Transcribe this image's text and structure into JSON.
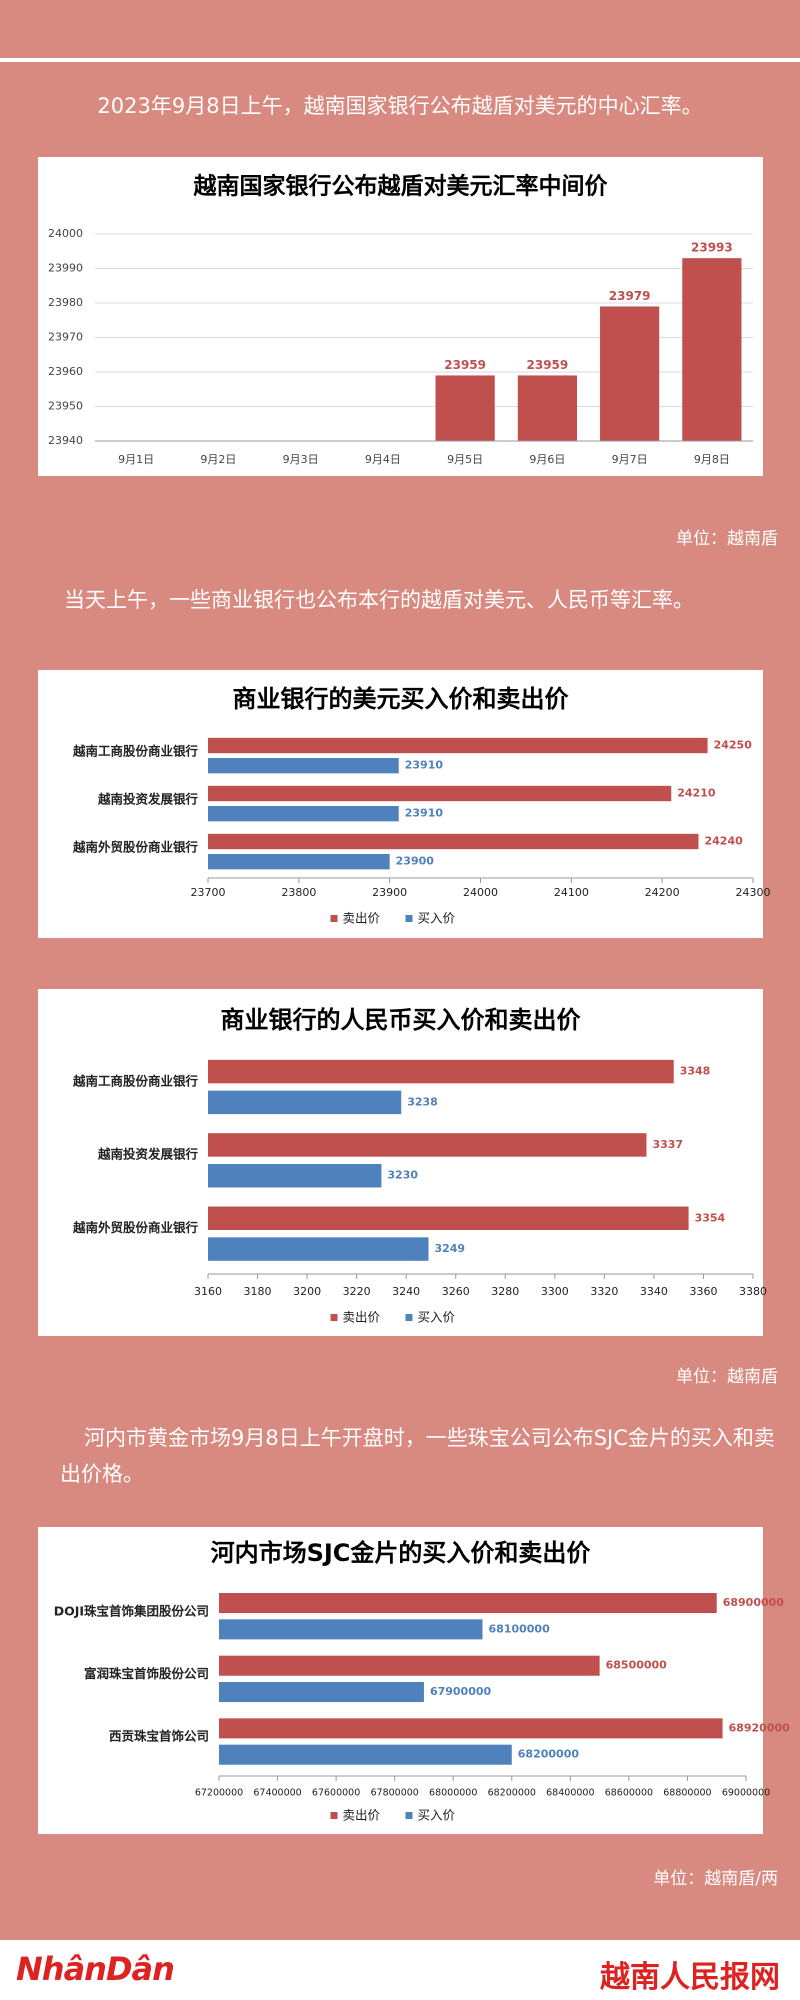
{
  "paragraphs": [
    "2023年9月8日上午，越南国家银行公布越盾对美元的中心汇率。",
    "当天上午，一些商业银行也公布本行的越盾对美元、人民币等汇率。",
    "河内市黄金市场9月8日上午开盘时，一些珠宝公司公布SJC金片的买入和卖出价格。"
  ],
  "notes": [
    "单位：越南盾",
    "单位：越南盾",
    "单位：越南盾/两"
  ],
  "footer": {
    "logo": "NhânDân",
    "site": "越南人民报网"
  },
  "chart_data": [
    {
      "type": "bar",
      "title": "越南国家银行公布越盾对美元汇率中间价",
      "categories": [
        "9月1日",
        "9月2日",
        "9月3日",
        "9月4日",
        "9月5日",
        "9月6日",
        "9月7日",
        "9月8日"
      ],
      "values": [
        null,
        null,
        null,
        null,
        23959,
        23959,
        23979,
        23993
      ],
      "color": "#c0504d",
      "ylim": [
        23940,
        24000
      ],
      "yticks": [
        23940,
        23950,
        23960,
        23970,
        23980,
        23990,
        24000
      ],
      "grid": true
    },
    {
      "type": "barh",
      "title": "商业银行的美元买入价和卖出价",
      "categories": [
        "越南工商股份商业银行",
        "越南投资发展银行",
        "越南外贸股份商业银行"
      ],
      "series": [
        {
          "name": "卖出价",
          "color": "#c0504d",
          "values": [
            24250,
            24210,
            24240
          ]
        },
        {
          "name": "买入价",
          "color": "#4f81bd",
          "values": [
            23910,
            23910,
            23900
          ]
        }
      ],
      "xlim": [
        23700,
        24300
      ],
      "xticks": [
        23700,
        23800,
        23900,
        24000,
        24100,
        24200,
        24300
      ],
      "legend": "bottom"
    },
    {
      "type": "barh",
      "title": "商业银行的人民币买入价和卖出价",
      "categories": [
        "越南工商股份商业银行",
        "越南投资发展银行",
        "越南外贸股份商业银行"
      ],
      "series": [
        {
          "name": "卖出价",
          "color": "#c0504d",
          "values": [
            3348,
            3337,
            3354
          ]
        },
        {
          "name": "买入价",
          "color": "#4f81bd",
          "values": [
            3238,
            3230,
            3249
          ]
        }
      ],
      "xlim": [
        3160,
        3380
      ],
      "xticks": [
        3160,
        3180,
        3200,
        3220,
        3240,
        3260,
        3280,
        3300,
        3320,
        3340,
        3360,
        3380
      ],
      "legend": "bottom"
    },
    {
      "type": "barh",
      "title": "河内市场SJC金片的买入价和卖出价",
      "categories": [
        "DOJI珠宝首饰集团股份公司",
        "富润珠宝首饰股份公司",
        "西贡珠宝首饰公司"
      ],
      "series": [
        {
          "name": "卖出价",
          "color": "#c0504d",
          "values": [
            68900000,
            68500000,
            68920000
          ]
        },
        {
          "name": "买入价",
          "color": "#4f81bd",
          "values": [
            68100000,
            67900000,
            68200000
          ]
        }
      ],
      "xlim": [
        67200000,
        69000000
      ],
      "xticks": [
        67200000,
        67400000,
        67600000,
        67800000,
        68000000,
        68200000,
        68400000,
        68600000,
        68800000,
        69000000
      ],
      "legend": "bottom"
    }
  ]
}
